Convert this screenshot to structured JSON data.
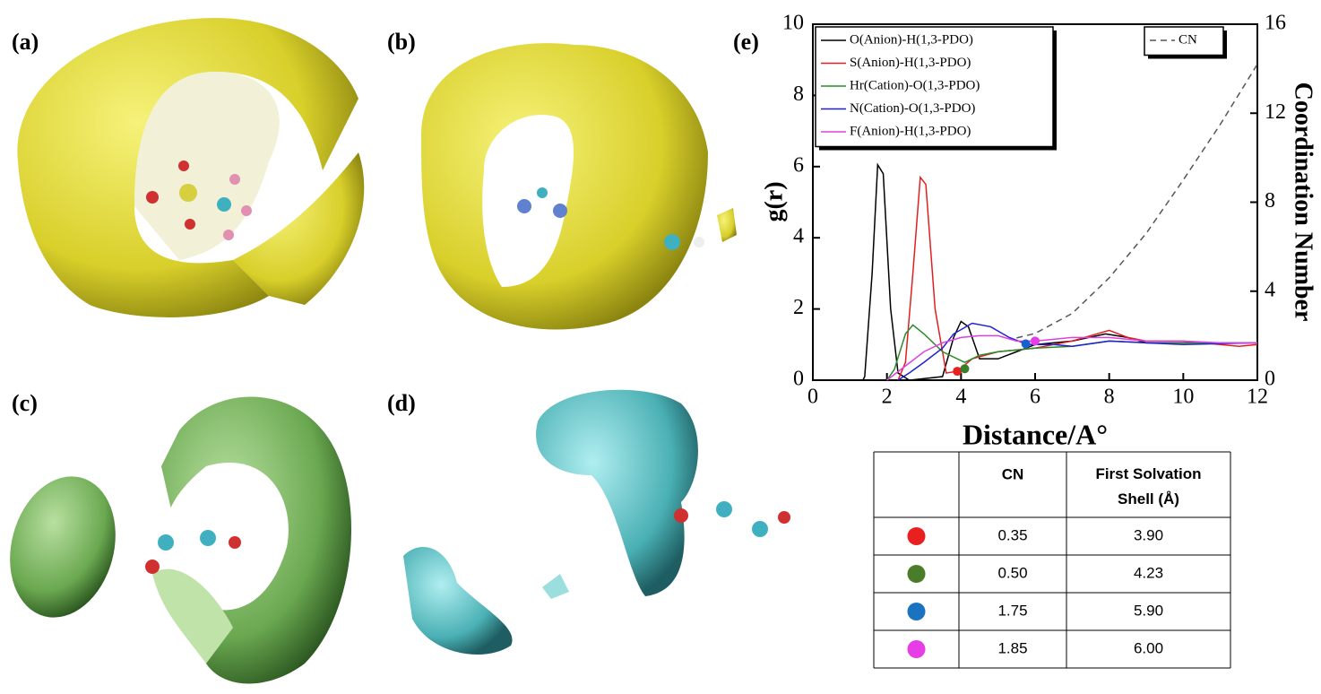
{
  "panels": [
    "(a)",
    "(b)",
    "(c)",
    "(d)",
    "(e)"
  ],
  "chart_data": {
    "type": "line",
    "xlabel": "Distance/A°",
    "ylabel": "g(r)",
    "y2label": "Coordination Number",
    "xlim": [
      0,
      12
    ],
    "xticks": [
      0,
      2,
      4,
      6,
      8,
      10,
      12
    ],
    "ylim": [
      0,
      10
    ],
    "yticks": [
      0,
      2,
      4,
      6,
      8,
      10
    ],
    "y2lim": [
      0,
      16
    ],
    "y2ticks": [
      0,
      4,
      8,
      12,
      16
    ],
    "legend": "top-left",
    "legend2": "top-right",
    "series": [
      {
        "name": "O(Anion)-H(1,3-PDO)",
        "color": "#000000",
        "x": [
          1.35,
          1.4,
          1.6,
          1.75,
          1.9,
          2.1,
          2.3,
          2.6,
          3.5,
          3.8,
          4.0,
          4.2,
          4.5,
          5.0,
          5.5,
          6,
          7,
          7.9,
          8.5,
          9,
          10,
          11,
          12
        ],
        "values": [
          0,
          0.1,
          3,
          6.05,
          5.8,
          2,
          0.2,
          0,
          0.1,
          1.2,
          1.65,
          1.5,
          0.6,
          0.6,
          0.8,
          1.0,
          1.1,
          1.3,
          1.2,
          1.05,
          1.05,
          1.05,
          1.05
        ]
      },
      {
        "name": "S(Anion)-H(1,3-PDO)",
        "color": "#e02020",
        "x": [
          2.3,
          2.5,
          2.7,
          2.9,
          3.05,
          3.3,
          3.6,
          3.9,
          4.3,
          5,
          6,
          7,
          8,
          8.5,
          9,
          10,
          11,
          11.5,
          12
        ],
        "values": [
          0,
          0.5,
          3,
          5.7,
          5.5,
          2,
          0.2,
          0.25,
          0.6,
          0.8,
          0.9,
          1.1,
          1.4,
          1.2,
          1.1,
          1.1,
          1.0,
          0.95,
          1.0
        ]
      },
      {
        "name": "Hr(Cation)-O(1,3-PDO)",
        "color": "#2a8a2a",
        "x": [
          2.0,
          2.2,
          2.5,
          2.7,
          3.0,
          3.5,
          4.1,
          4.5,
          5,
          6,
          7,
          8,
          9,
          10,
          12
        ],
        "values": [
          0,
          0.3,
          1.3,
          1.55,
          1.3,
          0.8,
          0.5,
          0.7,
          0.8,
          0.9,
          0.95,
          1.1,
          1.05,
          1.05,
          1.05
        ]
      },
      {
        "name": "N(Cation)-O(1,3-PDO)",
        "color": "#2020d0",
        "x": [
          2.3,
          2.6,
          3.0,
          3.5,
          3.8,
          4.3,
          4.8,
          5.3,
          5.8,
          6.5,
          7,
          8,
          9,
          10,
          12
        ],
        "values": [
          0,
          0.2,
          0.5,
          0.9,
          1.3,
          1.6,
          1.5,
          1.2,
          1.0,
          1.0,
          0.95,
          1.1,
          1.05,
          1.0,
          1.05
        ]
      },
      {
        "name": "F(Anion)-H(1,3-PDO)",
        "color": "#e040e0",
        "x": [
          2.0,
          2.5,
          3.0,
          3.5,
          4.0,
          4.5,
          5.0,
          5.5,
          6.0,
          7,
          8,
          9,
          10,
          11,
          12
        ],
        "values": [
          0,
          0.4,
          0.8,
          1.05,
          1.2,
          1.25,
          1.25,
          1.1,
          1.1,
          1.2,
          1.2,
          1.1,
          1.1,
          1.05,
          1.05
        ]
      },
      {
        "name": "CN",
        "color": "#555555",
        "axis": "y2",
        "dashed": true,
        "x": [
          5.5,
          6,
          7,
          8,
          9,
          10,
          11,
          12
        ],
        "values": [
          1.9,
          2.1,
          3,
          4.6,
          6.6,
          9.0,
          11.5,
          14.2
        ]
      }
    ],
    "points": [
      {
        "color": "#e8201f",
        "x": 3.9,
        "y": 0.25
      },
      {
        "color": "#3a7d2a",
        "x": 4.1,
        "y": 0.32
      },
      {
        "color": "#1a5fd0",
        "x": 5.75,
        "y": 1.02
      },
      {
        "color": "#e63de6",
        "x": 6.0,
        "y": 1.1
      }
    ]
  },
  "table": {
    "header": [
      "CN",
      "First Solvation Shell (Å)"
    ],
    "rows": [
      {
        "color": "#e8201f",
        "cells": [
          "0.35",
          "3.90"
        ]
      },
      {
        "color": "#4a7d2a",
        "cells": [
          "0.50",
          "4.23"
        ]
      },
      {
        "color": "#1a73c0",
        "cells": [
          "1.75",
          "5.90"
        ]
      },
      {
        "color": "#e63de6",
        "cells": [
          "1.85",
          "6.00"
        ]
      }
    ]
  }
}
